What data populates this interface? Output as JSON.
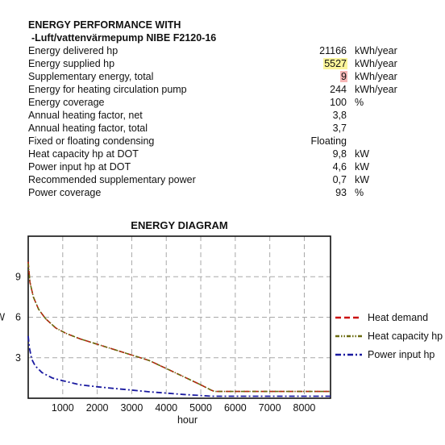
{
  "report": {
    "title_line1": "ENERGY PERFORMANCE WITH",
    "title_line2": "-Luft/vattenvärmepump  NIBE F2120-16",
    "rows": [
      {
        "label": "Energy delivered hp",
        "value": "21166",
        "unit": "kWh/year",
        "highlight": ""
      },
      {
        "label": "Energy supplied hp",
        "value": "5527",
        "unit": "kWh/year",
        "highlight": "yellow"
      },
      {
        "label": "Supplementary energy, total",
        "value": "9",
        "unit": "kWh/year",
        "highlight": "red"
      },
      {
        "label": "Energy for heating circulation pump",
        "value": "244",
        "unit": "kWh/year",
        "highlight": ""
      },
      {
        "label": "Energy coverage",
        "value": "100",
        "unit": "%",
        "highlight": ""
      },
      {
        "label": "Annual heating factor, net",
        "value": "3,8",
        "unit": "",
        "highlight": ""
      },
      {
        "label": "Annual heating factor, total",
        "value": "3,7",
        "unit": "",
        "highlight": ""
      },
      {
        "label": "Fixed or floating condensing",
        "value": "Floating",
        "unit": "",
        "highlight": ""
      },
      {
        "label": "Heat capacity hp at DOT",
        "value": "9,8",
        "unit": "kW",
        "highlight": ""
      },
      {
        "label": "Power input hp at DOT",
        "value": "4,6",
        "unit": "kW",
        "highlight": ""
      },
      {
        "label": "Recommended supplementary power",
        "value": "0,7",
        "unit": "kW",
        "highlight": ""
      },
      {
        "label": "Power coverage",
        "value": "93",
        "unit": "%",
        "highlight": ""
      }
    ]
  },
  "colors": {
    "heat_demand": "#cc1111",
    "heat_capacity": "#6b6b10",
    "power_input": "#1a1aa0"
  },
  "chart_data": {
    "type": "line",
    "title": "ENERGY DIAGRAM",
    "xlabel": "hour",
    "ylabel": "kW",
    "xlim": [
      0,
      8760
    ],
    "ylim": [
      0,
      12
    ],
    "xticks": [
      1000,
      2000,
      3000,
      4000,
      5000,
      6000,
      7000,
      8000
    ],
    "yticks": [
      3,
      6,
      9
    ],
    "grid": true,
    "legend_position": "right",
    "series": [
      {
        "name": "Heat demand",
        "style": "dashed",
        "x": [
          0,
          50,
          150,
          300,
          500,
          800,
          1100,
          1500,
          2000,
          2500,
          3000,
          3500,
          4000,
          4500,
          5000,
          5300,
          5400,
          6000,
          7000,
          8000,
          8760
        ],
        "y": [
          10.1,
          8.6,
          7.5,
          6.6,
          5.9,
          5.2,
          4.8,
          4.4,
          4.0,
          3.6,
          3.2,
          2.8,
          2.2,
          1.6,
          1.0,
          0.6,
          0.5,
          0.5,
          0.5,
          0.5,
          0.5
        ]
      },
      {
        "name": "Heat capacity hp",
        "style": "dash-dot-dot",
        "x": [
          0,
          50,
          150,
          300,
          500,
          800,
          1100,
          1500,
          2000,
          2500,
          3000,
          3500,
          4000,
          4500,
          5000,
          5300,
          5400,
          6000,
          7000,
          8000,
          8760
        ],
        "y": [
          10.0,
          8.6,
          7.5,
          6.6,
          5.9,
          5.2,
          4.8,
          4.4,
          4.0,
          3.6,
          3.2,
          2.8,
          2.2,
          1.6,
          1.0,
          0.6,
          0.5,
          0.5,
          0.5,
          0.5,
          0.5
        ]
      },
      {
        "name": "Power input hp",
        "style": "dash-dot",
        "x": [
          0,
          30,
          100,
          200,
          400,
          700,
          1000,
          1500,
          2000,
          2500,
          3000,
          3500,
          4000,
          4500,
          5000,
          5300,
          6000,
          7000,
          8000,
          8760
        ],
        "y": [
          4.6,
          3.8,
          2.9,
          2.4,
          1.9,
          1.5,
          1.3,
          1.0,
          0.85,
          0.72,
          0.6,
          0.48,
          0.38,
          0.28,
          0.2,
          0.15,
          0.15,
          0.15,
          0.15,
          0.15
        ]
      }
    ]
  }
}
